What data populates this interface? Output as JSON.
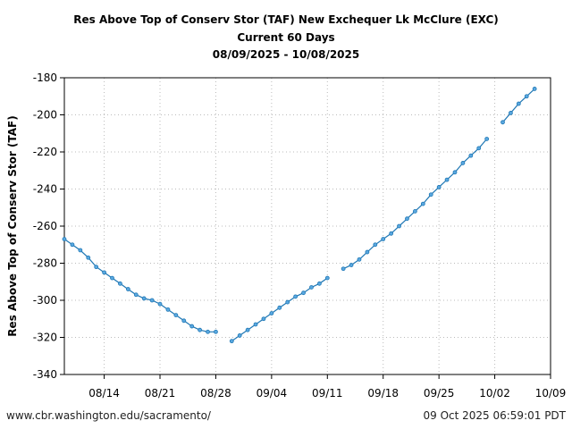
{
  "header": {
    "title_line1": "Res Above Top of Conserv Stor (TAF) New Exchequer Lk McClure (EXC)",
    "title_line2": "Current 60 Days",
    "title_line3": "08/09/2025 - 10/08/2025"
  },
  "footer": {
    "url": "www.cbr.washington.edu/sacramento/",
    "timestamp": "09 Oct 2025 06:59:01 PDT"
  },
  "chart_data": {
    "type": "line",
    "title": "Res Above Top of Conserv Stor (TAF) New Exchequer Lk McClure (EXC)",
    "subtitle": "Current 60 Days 08/09/2025 - 10/08/2025",
    "xlabel": "",
    "ylabel": "Res Above Top of Conserv Stor (TAF)",
    "ylim": [
      -340,
      -180
    ],
    "xlim": [
      "2025-08-09",
      "2025-10-09"
    ],
    "yticks": [
      -340,
      -320,
      -300,
      -280,
      -260,
      -240,
      -220,
      -200,
      -180
    ],
    "xticks": [
      "2025-08-14",
      "2025-08-21",
      "2025-08-28",
      "2025-09-04",
      "2025-09-11",
      "2025-09-18",
      "2025-09-25",
      "2025-10-02",
      "2025-10-09"
    ],
    "xtick_labels": [
      "08/14",
      "08/21",
      "08/28",
      "09/04",
      "09/11",
      "09/18",
      "09/25",
      "10/02",
      "10/09"
    ],
    "grid": true,
    "color": "#1f77b4",
    "segments": [
      {
        "x": [
          "2025-08-09",
          "2025-08-10",
          "2025-08-11",
          "2025-08-12",
          "2025-08-13",
          "2025-08-14",
          "2025-08-15",
          "2025-08-16",
          "2025-08-17",
          "2025-08-18",
          "2025-08-19",
          "2025-08-20",
          "2025-08-21",
          "2025-08-22",
          "2025-08-23",
          "2025-08-24",
          "2025-08-25",
          "2025-08-26",
          "2025-08-27",
          "2025-08-28"
        ],
        "y": [
          -267,
          -270,
          -273,
          -277,
          -282,
          -285,
          -288,
          -291,
          -294,
          -297,
          -299,
          -300,
          -302,
          -305,
          -308,
          -311,
          -314,
          -316,
          -317,
          -317
        ]
      },
      {
        "x": [
          "2025-08-30",
          "2025-08-31",
          "2025-09-01",
          "2025-09-02",
          "2025-09-03",
          "2025-09-04",
          "2025-09-05",
          "2025-09-06",
          "2025-09-07",
          "2025-09-08",
          "2025-09-09",
          "2025-09-10",
          "2025-09-11"
        ],
        "y": [
          -322,
          -319,
          -316,
          -313,
          -310,
          -307,
          -304,
          -301,
          -298,
          -296,
          -293,
          -291,
          -288
        ]
      },
      {
        "x": [
          "2025-09-13",
          "2025-09-14",
          "2025-09-15",
          "2025-09-16",
          "2025-09-17",
          "2025-09-18",
          "2025-09-19",
          "2025-09-20",
          "2025-09-21",
          "2025-09-22",
          "2025-09-23",
          "2025-09-24",
          "2025-09-25",
          "2025-09-26",
          "2025-09-27",
          "2025-09-28",
          "2025-09-29",
          "2025-09-30",
          "2025-10-01"
        ],
        "y": [
          -283,
          -281,
          -278,
          -274,
          -270,
          -267,
          -264,
          -260,
          -256,
          -252,
          -248,
          -243,
          -239,
          -235,
          -231,
          -226,
          -222,
          -218,
          -213
        ]
      },
      {
        "x": [
          "2025-10-03",
          "2025-10-04",
          "2025-10-05",
          "2025-10-06",
          "2025-10-07"
        ],
        "y": [
          -204,
          -199,
          -194,
          -190,
          -186
        ]
      }
    ]
  }
}
